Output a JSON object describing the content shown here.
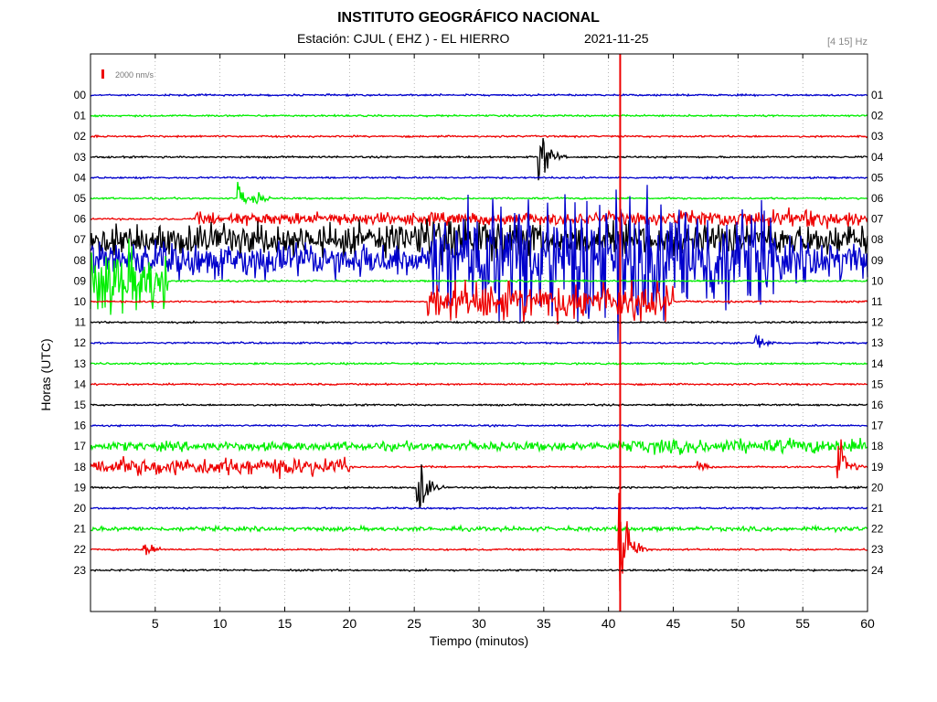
{
  "header": {
    "title": "INSTITUTO GEOGRÁFICO NACIONAL",
    "station": "Estación:  CJUL ( EHZ ) - EL HIERRO",
    "date": "2021-11-25",
    "filter": "[4 15] Hz"
  },
  "chart_data": {
    "type": "line",
    "title": "INSTITUTO GEOGRÁFICO NACIONAL",
    "xlabel": "Tiempo (minutos)",
    "ylabel": "Horas (UTC)",
    "xlim": [
      0,
      60
    ],
    "x_ticks": [
      5,
      10,
      15,
      20,
      25,
      30,
      35,
      40,
      45,
      50,
      55,
      60
    ],
    "scale_label": "2000 nm/s",
    "grid": true,
    "left_labels": [
      "00",
      "01",
      "02",
      "03",
      "04",
      "05",
      "06",
      "07",
      "08",
      "09",
      "10",
      "11",
      "12",
      "13",
      "14",
      "15",
      "16",
      "17",
      "18",
      "19",
      "20",
      "21",
      "22",
      "23"
    ],
    "right_labels": [
      "01",
      "02",
      "03",
      "04",
      "05",
      "06",
      "07",
      "08",
      "09",
      "10",
      "11",
      "12",
      "13",
      "14",
      "15",
      "16",
      "17",
      "18",
      "19",
      "20",
      "21",
      "22",
      "23",
      "24"
    ],
    "trace_colors": [
      "#0000cc",
      "#00ee00",
      "#ee0000",
      "#000000"
    ],
    "events": [
      {
        "hour": 3,
        "minute": 34.7,
        "amplitude": 2.1
      },
      {
        "hour": 5,
        "minute": 11.5,
        "amplitude": 0.8
      },
      {
        "hour": 5,
        "minute": 12.7,
        "amplitude": 0.6
      },
      {
        "hour": 9,
        "minute": 2.5,
        "amplitude": 2.6
      },
      {
        "hour": 10,
        "minute": 32.0,
        "amplitude": 1.4
      },
      {
        "hour": 12,
        "minute": 51.4,
        "amplitude": 0.8
      },
      {
        "hour": 18,
        "minute": 57.8,
        "amplitude": 1.6
      },
      {
        "hour": 18,
        "minute": 46.9,
        "amplitude": 0.5
      },
      {
        "hour": 19,
        "minute": 25.3,
        "amplitude": 2.2
      },
      {
        "hour": 21,
        "minute": 57.6,
        "amplitude": 0.3
      },
      {
        "hour": 22,
        "minute": 4.2,
        "amplitude": 0.7
      },
      {
        "hour": 22,
        "minute": 40.9,
        "amplitude": 4.5
      }
    ]
  }
}
